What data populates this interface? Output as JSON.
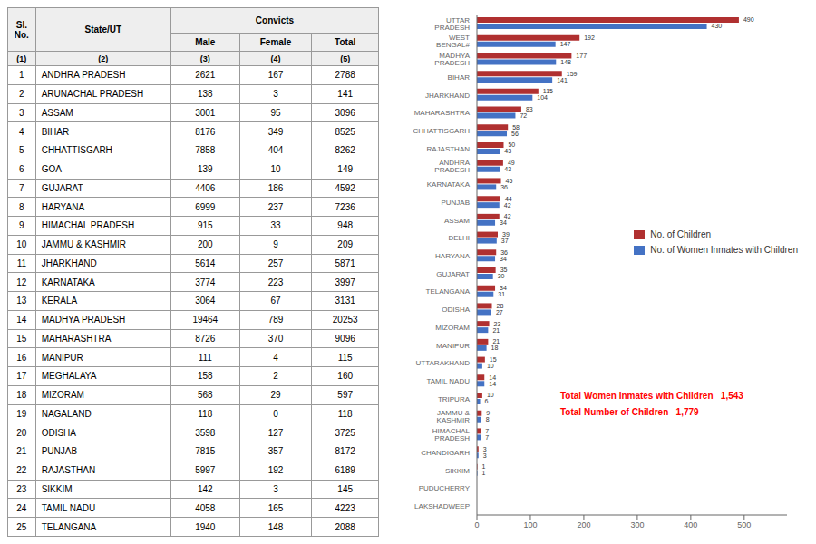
{
  "chart_data": [
    {
      "type": "bar",
      "orientation": "horizontal",
      "categories": [
        "UTTAR PRADESH",
        "WEST BENGAL#",
        "MADHYA PRADESH",
        "BIHAR",
        "JHARKHAND",
        "MAHARASHTRA",
        "CHHATTISGARH",
        "RAJASTHAN",
        "ANDHRA PRADESH",
        "KARNATAKA",
        "PUNJAB",
        "ASSAM",
        "DELHI",
        "HARYANA",
        "GUJARAT",
        "TELANGANA",
        "ODISHA",
        "MIZORAM",
        "MANIPUR",
        "UTTARAKHAND",
        "TAMIL NADU",
        "TRIPURA",
        "JAMMU & KASHMIR",
        "HIMACHAL PRADESH",
        "CHANDIGARH",
        "SIKKIM",
        "PUDUCHERRY",
        "LAKSHADWEEP"
      ],
      "series": [
        {
          "name": "No. of Children",
          "color": "#B03030",
          "values": [
            490,
            192,
            177,
            159,
            115,
            83,
            58,
            50,
            49,
            45,
            44,
            42,
            39,
            36,
            35,
            34,
            28,
            23,
            21,
            15,
            14,
            10,
            9,
            7,
            3,
            1,
            0,
            0
          ]
        },
        {
          "name": "No. of Women Inmates with Children",
          "color": "#4472C4",
          "values": [
            430,
            147,
            148,
            141,
            104,
            72,
            56,
            43,
            43,
            36,
            42,
            34,
            37,
            34,
            30,
            31,
            27,
            21,
            18,
            10,
            14,
            6,
            8,
            7,
            3,
            1,
            0,
            0
          ]
        }
      ],
      "xlim": [
        0,
        580
      ],
      "xticks": [
        0,
        100,
        200,
        300,
        400,
        500
      ],
      "grid": false,
      "legend": "right",
      "data_labels": true,
      "annotations": [
        {
          "text": "Total Women Inmates with Children   1,543",
          "color": "red"
        },
        {
          "text": "Total Number of Children   1,779",
          "color": "red"
        }
      ]
    },
    {
      "type": "table",
      "column_group": "Convicts",
      "columns": [
        "Sl. No.",
        "State/UT",
        "Male",
        "Female",
        "Total"
      ],
      "column_numbers": [
        "(1)",
        "(2)",
        "(3)",
        "(4)",
        "(5)"
      ],
      "rows": [
        [
          1,
          "ANDHRA PRADESH",
          2621,
          167,
          2788
        ],
        [
          2,
          "ARUNACHAL PRADESH",
          138,
          3,
          141
        ],
        [
          3,
          "ASSAM",
          3001,
          95,
          3096
        ],
        [
          4,
          "BIHAR",
          8176,
          349,
          8525
        ],
        [
          5,
          "CHHATTISGARH",
          7858,
          404,
          8262
        ],
        [
          6,
          "GOA",
          139,
          10,
          149
        ],
        [
          7,
          "GUJARAT",
          4406,
          186,
          4592
        ],
        [
          8,
          "HARYANA",
          6999,
          237,
          7236
        ],
        [
          9,
          "HIMACHAL PRADESH",
          915,
          33,
          948
        ],
        [
          10,
          "JAMMU & KASHMIR",
          200,
          9,
          209
        ],
        [
          11,
          "JHARKHAND",
          5614,
          257,
          5871
        ],
        [
          12,
          "KARNATAKA",
          3774,
          223,
          3997
        ],
        [
          13,
          "KERALA",
          3064,
          67,
          3131
        ],
        [
          14,
          "MADHYA PRADESH",
          19464,
          789,
          20253
        ],
        [
          15,
          "MAHARASHTRA",
          8726,
          370,
          9096
        ],
        [
          16,
          "MANIPUR",
          111,
          4,
          115
        ],
        [
          17,
          "MEGHALAYA",
          158,
          2,
          160
        ],
        [
          18,
          "MIZORAM",
          568,
          29,
          597
        ],
        [
          19,
          "NAGALAND",
          118,
          0,
          118
        ],
        [
          20,
          "ODISHA",
          3598,
          127,
          3725
        ],
        [
          21,
          "PUNJAB",
          7815,
          357,
          8172
        ],
        [
          22,
          "RAJASTHAN",
          5997,
          192,
          6189
        ],
        [
          23,
          "SIKKIM",
          142,
          3,
          145
        ],
        [
          24,
          "TAMIL NADU",
          4058,
          165,
          4223
        ],
        [
          25,
          "TELANGANA",
          1940,
          148,
          2088
        ]
      ]
    }
  ]
}
